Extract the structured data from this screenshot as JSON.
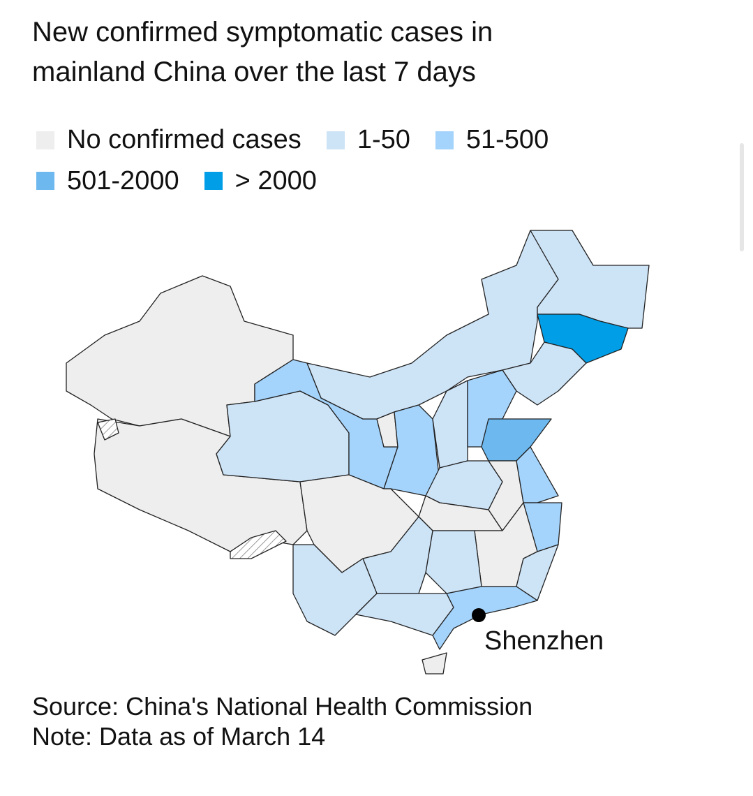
{
  "header": {
    "title": "New confirmed symptomatic cases in mainland China over the last 7 days"
  },
  "legend": [
    {
      "label": "No confirmed cases",
      "color": "#eeeeee"
    },
    {
      "label": "1-50",
      "color": "#cde3f6"
    },
    {
      "label": "51-500",
      "color": "#a4d3fb"
    },
    {
      "label": "501-2000",
      "color": "#6cb8ef"
    },
    {
      "label": "> 2000",
      "color": "#009ee6"
    }
  ],
  "map": {
    "annotation": "Shenzhen"
  },
  "footer": {
    "source": "Source: China's National Health Commission",
    "note": "Note: Data as of March 14"
  }
}
